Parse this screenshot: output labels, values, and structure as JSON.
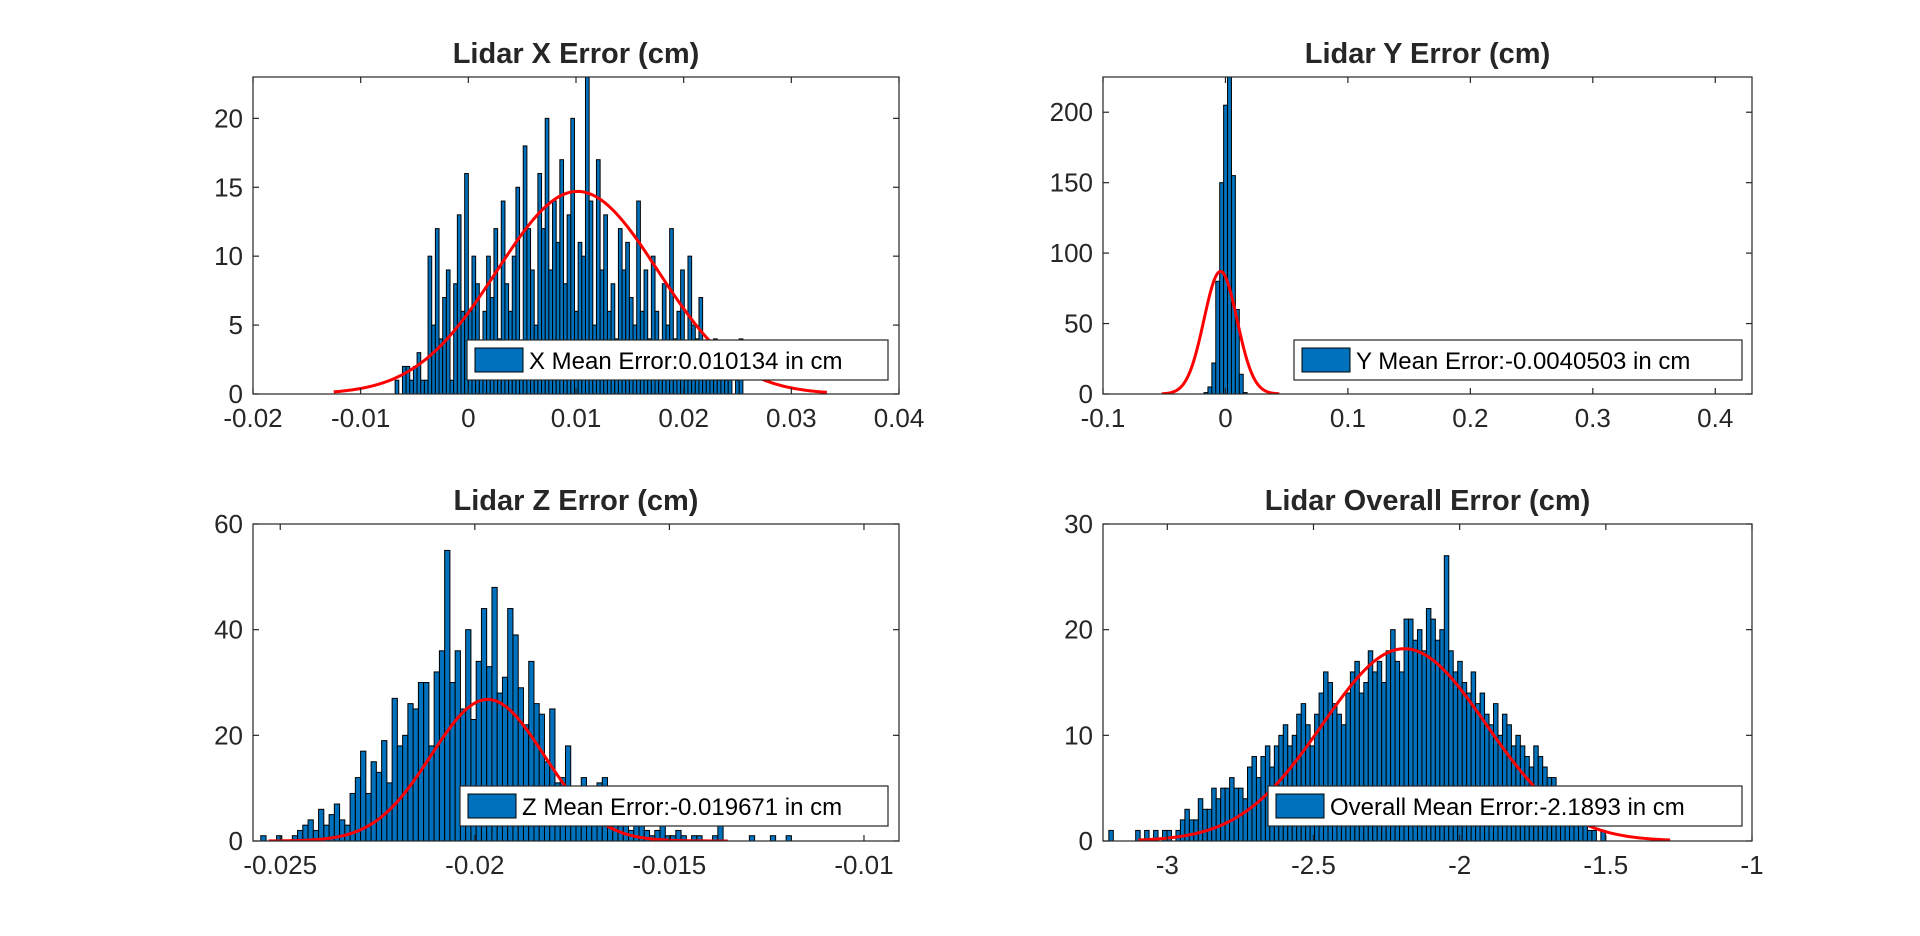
{
  "chart_data": [
    {
      "type": "bar",
      "title": "Lidar X Error (cm)",
      "xlim": [
        -0.02,
        0.04
      ],
      "ylim": [
        0,
        23
      ],
      "xticks": [
        -0.02,
        -0.01,
        0,
        0.01,
        0.02,
        0.03,
        0.04
      ],
      "xtick_labels": [
        "-0.02",
        "-0.01",
        "0",
        "0.01",
        "0.02",
        "0.03",
        "0.04"
      ],
      "yticks": [
        0,
        5,
        10,
        15,
        20
      ],
      "ytick_labels": [
        "0",
        "5",
        "10",
        "15",
        "20"
      ],
      "bin_start": -0.0068,
      "bin_width": 0.00034,
      "values": [
        1,
        0,
        2,
        2,
        1,
        2,
        3,
        1,
        1,
        10,
        5,
        12,
        4,
        7,
        9,
        1,
        8,
        13,
        6,
        16,
        6,
        10,
        8,
        3,
        6,
        10,
        7,
        12,
        4,
        14,
        8,
        6,
        10,
        15,
        3,
        18,
        12,
        9,
        5,
        16,
        12,
        20,
        9,
        14,
        11,
        17,
        8,
        13,
        20,
        6,
        11,
        10,
        23,
        14,
        5,
        17,
        9,
        13,
        6,
        8,
        4,
        12,
        9,
        11,
        7,
        5,
        14,
        6,
        9,
        4,
        10,
        6,
        3,
        8,
        5,
        12,
        4,
        6,
        9,
        3,
        10,
        5,
        4,
        7,
        3,
        2,
        3,
        4,
        1,
        2,
        1,
        2,
        0,
        1,
        4
      ],
      "fit": {
        "mean": 0.010134,
        "peak": 14.7,
        "sigma": 0.0075,
        "x0": -0.0125,
        "x1": 0.0333
      },
      "legend": {
        "label": "X Mean Error:0.010134 in cm",
        "location": "bottom-right"
      },
      "colors": {
        "bar": "#0072BD",
        "fit": "#FF0000"
      }
    },
    {
      "type": "bar",
      "title": "Lidar Y Error (cm)",
      "xlim": [
        -0.1,
        0.43
      ],
      "ylim": [
        0,
        225
      ],
      "xticks": [
        -0.1,
        0,
        0.1,
        0.2,
        0.3,
        0.4
      ],
      "xtick_labels": [
        "-0.1",
        "0",
        "0.1",
        "0.2",
        "0.3",
        "0.4"
      ],
      "yticks": [
        0,
        50,
        100,
        150,
        200
      ],
      "ytick_labels": [
        "0",
        "50",
        "100",
        "150",
        "200"
      ],
      "bin_start": -0.0175,
      "bin_width": 0.0032,
      "values": [
        1,
        5,
        22,
        80,
        150,
        205,
        225,
        155,
        60,
        14,
        1
      ],
      "fit": {
        "mean": -0.0040503,
        "peak": 87,
        "sigma": 0.0135,
        "x0": -0.052,
        "x1": 0.044
      },
      "legend": {
        "label": "Y Mean Error:-0.0040503 in cm",
        "location": "bottom-right"
      },
      "colors": {
        "bar": "#0072BD",
        "fit": "#FF0000"
      }
    },
    {
      "type": "bar",
      "title": "Lidar Z Error (cm)",
      "xlim": [
        -0.0257,
        -0.0091
      ],
      "ylim": [
        0,
        60
      ],
      "xticks": [
        -0.025,
        -0.02,
        -0.015,
        -0.01
      ],
      "xtick_labels": [
        "-0.025",
        "-0.02",
        "-0.015",
        "-0.01"
      ],
      "yticks": [
        0,
        20,
        40,
        60
      ],
      "ytick_labels": [
        "0",
        "20",
        "40",
        "60"
      ],
      "bin_start": -0.0255,
      "bin_width": 0.000135,
      "values": [
        1,
        0,
        0,
        1,
        0,
        0,
        1,
        2,
        3,
        4,
        2,
        6,
        3,
        5,
        7,
        4,
        3,
        9,
        12,
        17,
        9,
        15,
        13,
        19,
        11,
        27,
        18,
        20,
        26,
        25,
        30,
        30,
        18,
        32,
        36,
        55,
        30,
        36,
        25,
        40,
        23,
        34,
        44,
        33,
        48,
        28,
        31,
        44,
        39,
        29,
        22,
        34,
        26,
        24,
        15,
        25,
        11,
        12,
        18,
        7,
        10,
        12,
        5,
        8,
        11,
        12,
        4,
        6,
        3,
        5,
        2,
        3,
        4,
        2,
        1,
        2,
        3,
        1,
        1,
        2,
        1,
        0,
        1,
        1,
        0,
        0,
        1,
        3,
        0,
        0,
        0,
        0,
        0,
        1,
        0,
        0,
        0,
        1,
        0,
        0,
        1,
        0,
        0,
        0,
        0,
        0,
        0,
        0,
        0,
        0,
        0,
        0,
        0,
        0,
        0,
        0,
        0,
        0,
        0,
        0,
        0,
        0,
        0,
        0,
        1,
        0,
        0,
        1
      ],
      "fit": {
        "mean": -0.019671,
        "peak": 26.8,
        "sigma": 0.00145,
        "x0": -0.0253,
        "x1": -0.0135
      },
      "legend": {
        "label": "Z Mean Error:-0.019671 in cm",
        "location": "bottom-right"
      },
      "colors": {
        "bar": "#0072BD",
        "fit": "#FF0000"
      }
    },
    {
      "type": "bar",
      "title": "Lidar Overall Error (cm)",
      "xlim": [
        -3.22,
        -1
      ],
      "ylim": [
        0,
        30
      ],
      "xticks": [
        -3,
        -2.5,
        -2,
        -1.5,
        -1
      ],
      "xtick_labels": [
        "-3",
        "-2.5",
        "-2",
        "-1.5",
        "-1"
      ],
      "yticks": [
        0,
        10,
        20,
        30
      ],
      "ytick_labels": [
        "0",
        "10",
        "20",
        "30"
      ],
      "bin_start": -3.2,
      "bin_width": 0.0153,
      "values": [
        1,
        0,
        0,
        0,
        0,
        0,
        1,
        0,
        1,
        0,
        1,
        0,
        1,
        1,
        0,
        1,
        2,
        3,
        2,
        2,
        4,
        3,
        3,
        5,
        4,
        5,
        5,
        6,
        5,
        5,
        4,
        7,
        8,
        6,
        8,
        9,
        7,
        9,
        10,
        11,
        9,
        10,
        12,
        13,
        11,
        9,
        12,
        14,
        16,
        15,
        13,
        12,
        11,
        14,
        16,
        17,
        14,
        15,
        18,
        16,
        17,
        15,
        18,
        20,
        17,
        16,
        21,
        21,
        19,
        20,
        18,
        22,
        21,
        19,
        20,
        27,
        18,
        16,
        17,
        15,
        14,
        16,
        13,
        14,
        12,
        11,
        13,
        10,
        12,
        11,
        9,
        10,
        9,
        8,
        7,
        9,
        8,
        7,
        6,
        6,
        5,
        4,
        4,
        3,
        3,
        2,
        2,
        1,
        1,
        0,
        1
      ],
      "fit": {
        "mean": -2.1893,
        "peak": 18.2,
        "sigma": 0.28,
        "x0": -3.1,
        "x1": -1.28
      },
      "legend": {
        "label": "Overall Mean Error:-2.1893 in cm",
        "location": "bottom-right"
      },
      "colors": {
        "bar": "#0072BD",
        "fit": "#FF0000"
      }
    }
  ]
}
